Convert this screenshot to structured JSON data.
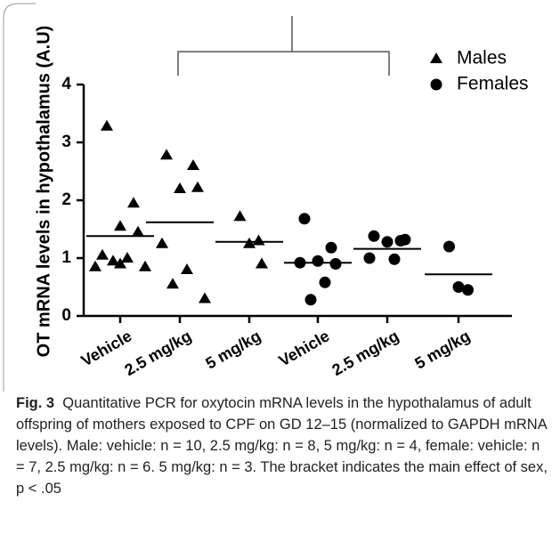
{
  "chart_data": {
    "type": "scatter",
    "ylabel": "OT mRNA levels in hypothalamus (A.U)",
    "categories": [
      "Vehicle",
      "2.5 mg/kg",
      "5 mg/kg",
      "Vehicle",
      "2.5 mg/kg",
      "5 mg/kg"
    ],
    "ylim": [
      0,
      4
    ],
    "yticks": [
      0,
      1,
      2,
      3,
      4
    ],
    "color": "#000000",
    "legend": "top-right",
    "series": [
      {
        "name": "Males",
        "marker": "triangle",
        "values": [
          [
            3.28,
            1.95,
            1.55,
            1.45,
            1.05,
            1.0,
            0.95,
            0.85,
            0.85,
            0.9
          ],
          [
            2.78,
            2.6,
            2.2,
            2.22,
            1.25,
            0.8,
            0.55,
            0.3
          ],
          [
            1.72,
            1.3,
            1.25,
            0.9
          ],
          null,
          null,
          null
        ],
        "means": [
          1.38,
          1.62,
          1.28,
          null,
          null,
          null
        ]
      },
      {
        "name": "Females",
        "marker": "circle",
        "values": [
          null,
          null,
          null,
          [
            1.68,
            1.18,
            0.95,
            0.9,
            0.92,
            0.58,
            0.28
          ],
          [
            1.38,
            1.3,
            1.28,
            1.32,
            1.0,
            0.98
          ],
          [
            1.2,
            0.45,
            0.5
          ]
        ],
        "means": [
          null,
          null,
          null,
          0.92,
          1.16,
          0.72
        ]
      }
    ],
    "caption_label": "Fig. 3",
    "caption": "Quantitative PCR for oxytocin mRNA levels in the hypothalamus of adult offspring of mothers exposed to CPF on GD 12–15 (normalized to GAPDH mRNA levels). Male: vehicle: n = 10, 2.5 mg/kg: n = 8, 5 mg/kg: n = 4, female: vehicle: n = 7, 2.5 mg/kg: n = 6. 5 mg/kg: n = 3. The bracket indicates the main effect of sex, p < .05"
  }
}
